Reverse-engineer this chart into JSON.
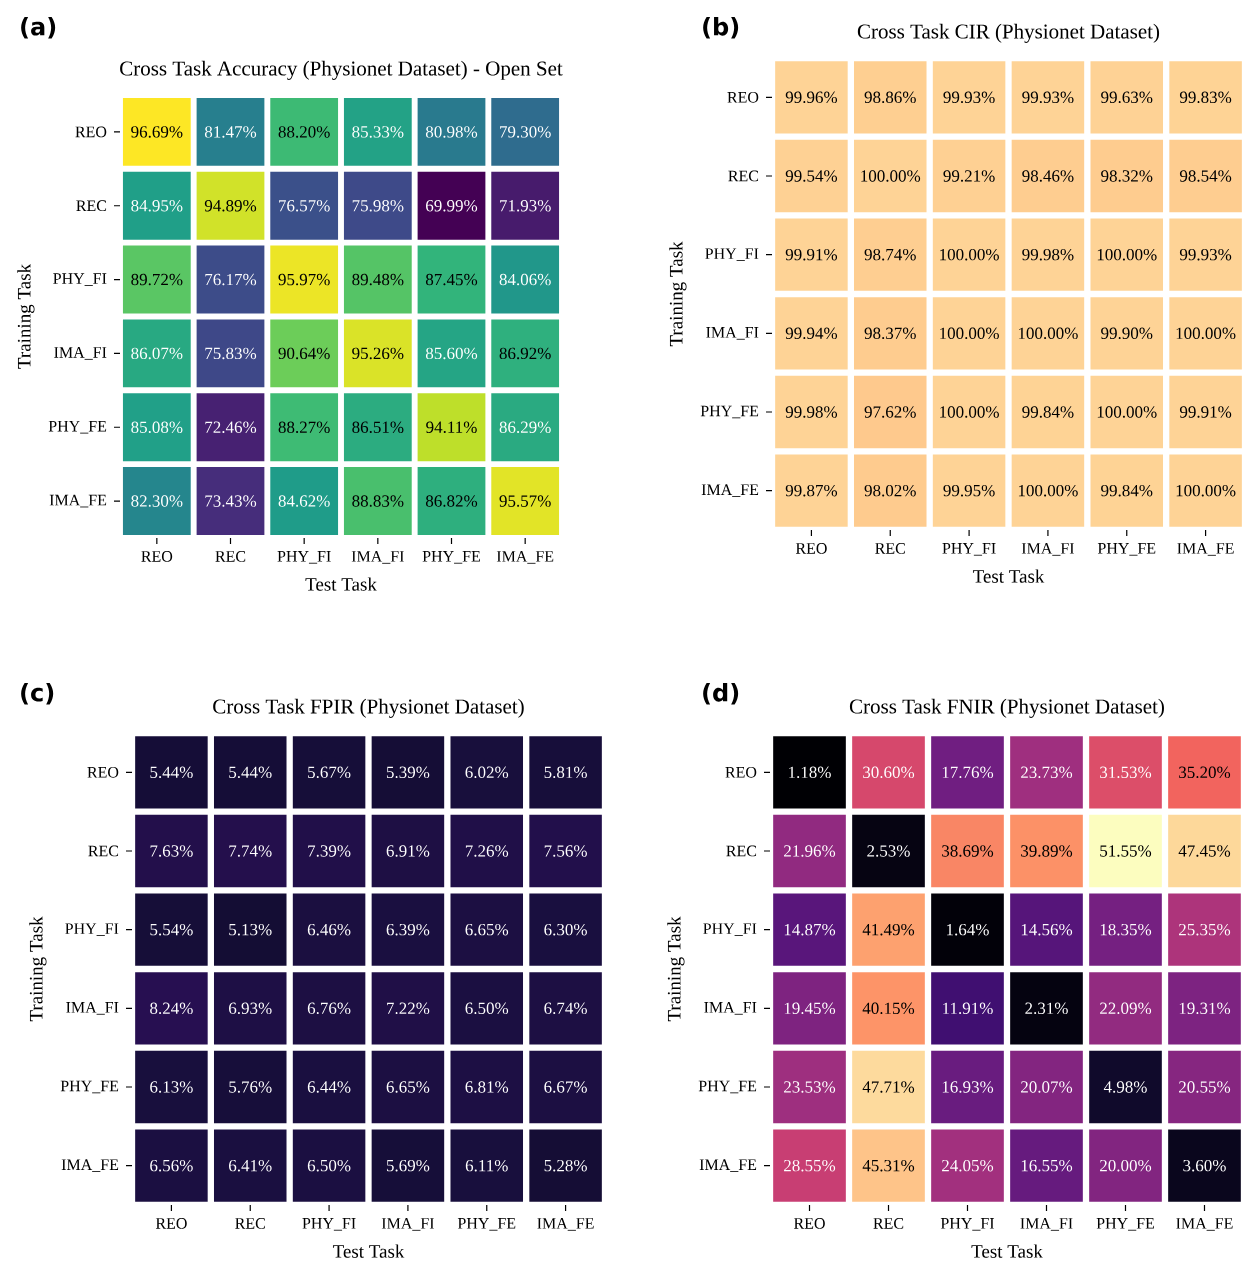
{
  "chart_data": [
    {
      "type": "heatmap",
      "title": "Cross Task Accuracy (Physionet Dataset) - Open Set",
      "xlabel": "Test Task",
      "ylabel": "Training Task",
      "annotations": [
        "(a)"
      ],
      "categories": [
        "REO",
        "REC",
        "PHY_FI",
        "IMA_FI",
        "PHY_FE",
        "IMA_FE"
      ],
      "y_categories": [
        "REO",
        "REC",
        "PHY_FI",
        "IMA_FI",
        "PHY_FE",
        "IMA_FE"
      ],
      "cells": [
        [
          96.69,
          81.47,
          88.2,
          85.33,
          80.98,
          79.3
        ],
        [
          84.95,
          94.89,
          76.57,
          75.98,
          69.99,
          71.93
        ],
        [
          89.72,
          76.17,
          95.97,
          89.48,
          87.45,
          84.06
        ],
        [
          86.07,
          75.83,
          90.64,
          95.26,
          85.6,
          86.92
        ],
        [
          85.08,
          72.46,
          88.27,
          86.51,
          94.11,
          86.29
        ],
        [
          82.3,
          73.43,
          84.62,
          88.83,
          86.82,
          95.57
        ]
      ],
      "cell_labels": [
        [
          "96.69%",
          "81.47%",
          "88.20%",
          "85.33%",
          "80.98%",
          "79.30%"
        ],
        [
          "84.95%",
          "94.89%",
          "76.57%",
          "75.98%",
          "69.99%",
          "71.93%"
        ],
        [
          "89.72%",
          "76.17%",
          "95.97%",
          "89.48%",
          "87.45%",
          "84.06%"
        ],
        [
          "86.07%",
          "75.83%",
          "90.64%",
          "95.26%",
          "85.60%",
          "86.92%"
        ],
        [
          "85.08%",
          "72.46%",
          "88.27%",
          "86.51%",
          "94.11%",
          "86.29%"
        ],
        [
          "82.30%",
          "73.43%",
          "84.62%",
          "88.83%",
          "86.82%",
          "95.57%"
        ]
      ]
    },
    {
      "type": "heatmap",
      "title": "Cross Task CIR (Physionet Dataset)",
      "xlabel": "Test Task",
      "ylabel": "Training Task",
      "annotations": [
        "(b)"
      ],
      "categories": [
        "REO",
        "REC",
        "PHY_FI",
        "IMA_FI",
        "PHY_FE",
        "IMA_FE"
      ],
      "y_categories": [
        "REO",
        "REC",
        "PHY_FI",
        "IMA_FI",
        "PHY_FE",
        "IMA_FE"
      ],
      "cells": [
        [
          99.96,
          98.86,
          99.93,
          99.93,
          99.63,
          99.83
        ],
        [
          99.54,
          100.0,
          99.21,
          98.46,
          98.32,
          98.54
        ],
        [
          99.91,
          98.74,
          100.0,
          99.98,
          100.0,
          99.93
        ],
        [
          99.94,
          98.37,
          100.0,
          100.0,
          99.9,
          100.0
        ],
        [
          99.98,
          97.62,
          100.0,
          99.84,
          100.0,
          99.91
        ],
        [
          99.87,
          98.02,
          99.95,
          100.0,
          99.84,
          100.0
        ]
      ],
      "cell_labels": [
        [
          "99.96%",
          "98.86%",
          "99.93%",
          "99.93%",
          "99.63%",
          "99.83%"
        ],
        [
          "99.54%",
          "100.00%",
          "99.21%",
          "98.46%",
          "98.32%",
          "98.54%"
        ],
        [
          "99.91%",
          "98.74%",
          "100.00%",
          "99.98%",
          "100.00%",
          "99.93%"
        ],
        [
          "99.94%",
          "98.37%",
          "100.00%",
          "100.00%",
          "99.90%",
          "100.00%"
        ],
        [
          "99.98%",
          "97.62%",
          "100.00%",
          "99.84%",
          "100.00%",
          "99.91%"
        ],
        [
          "99.87%",
          "98.02%",
          "99.95%",
          "100.00%",
          "99.84%",
          "100.00%"
        ]
      ]
    },
    {
      "type": "heatmap",
      "title": "Cross Task FPIR (Physionet Dataset)",
      "xlabel": "Test Task",
      "ylabel": "Training Task",
      "annotations": [
        "(c)"
      ],
      "categories": [
        "REO",
        "REC",
        "PHY_FI",
        "IMA_FI",
        "PHY_FE",
        "IMA_FE"
      ],
      "y_categories": [
        "REO",
        "REC",
        "PHY_FI",
        "IMA_FI",
        "PHY_FE",
        "IMA_FE"
      ],
      "cells": [
        [
          5.44,
          5.44,
          5.67,
          5.39,
          6.02,
          5.81
        ],
        [
          7.63,
          7.74,
          7.39,
          6.91,
          7.26,
          7.56
        ],
        [
          5.54,
          5.13,
          6.46,
          6.39,
          6.65,
          6.3
        ],
        [
          8.24,
          6.93,
          6.76,
          7.22,
          6.5,
          6.74
        ],
        [
          6.13,
          5.76,
          6.44,
          6.65,
          6.81,
          6.67
        ],
        [
          6.56,
          6.41,
          6.5,
          5.69,
          6.11,
          5.28
        ]
      ],
      "cell_labels": [
        [
          "5.44%",
          "5.44%",
          "5.67%",
          "5.39%",
          "6.02%",
          "5.81%"
        ],
        [
          "7.63%",
          "7.74%",
          "7.39%",
          "6.91%",
          "7.26%",
          "7.56%"
        ],
        [
          "5.54%",
          "5.13%",
          "6.46%",
          "6.39%",
          "6.65%",
          "6.30%"
        ],
        [
          "8.24%",
          "6.93%",
          "6.76%",
          "7.22%",
          "6.50%",
          "6.74%"
        ],
        [
          "6.13%",
          "5.76%",
          "6.44%",
          "6.65%",
          "6.81%",
          "6.67%"
        ],
        [
          "6.56%",
          "6.41%",
          "6.50%",
          "5.69%",
          "6.11%",
          "5.28%"
        ]
      ]
    },
    {
      "type": "heatmap",
      "title": "Cross Task FNIR (Physionet Dataset)",
      "xlabel": "Test Task",
      "ylabel": "Training Task",
      "annotations": [
        "(d)"
      ],
      "categories": [
        "REO",
        "REC",
        "PHY_FI",
        "IMA_FI",
        "PHY_FE",
        "IMA_FE"
      ],
      "y_categories": [
        "REO",
        "REC",
        "PHY_FI",
        "IMA_FI",
        "PHY_FE",
        "IMA_FE"
      ],
      "cells": [
        [
          1.18,
          30.6,
          17.76,
          23.73,
          31.53,
          35.2
        ],
        [
          21.96,
          2.53,
          38.69,
          39.89,
          51.55,
          47.45
        ],
        [
          14.87,
          41.49,
          1.64,
          14.56,
          18.35,
          25.35
        ],
        [
          19.45,
          40.15,
          11.91,
          2.31,
          22.09,
          19.31
        ],
        [
          23.53,
          47.71,
          16.93,
          20.07,
          4.98,
          20.55
        ],
        [
          28.55,
          45.31,
          24.05,
          16.55,
          20.0,
          3.6
        ]
      ],
      "cell_labels": [
        [
          "1.18%",
          "30.60%",
          "17.76%",
          "23.73%",
          "31.53%",
          "35.20%"
        ],
        [
          "21.96%",
          "2.53%",
          "38.69%",
          "39.89%",
          "51.55%",
          "47.45%"
        ],
        [
          "14.87%",
          "41.49%",
          "1.64%",
          "14.56%",
          "18.35%",
          "25.35%"
        ],
        [
          "19.45%",
          "40.15%",
          "11.91%",
          "2.31%",
          "22.09%",
          "19.31%"
        ],
        [
          "23.53%",
          "47.71%",
          "16.93%",
          "20.07%",
          "4.98%",
          "20.55%"
        ],
        [
          "28.55%",
          "45.31%",
          "24.05%",
          "16.55%",
          "20.00%",
          "3.60%"
        ]
      ]
    }
  ]
}
